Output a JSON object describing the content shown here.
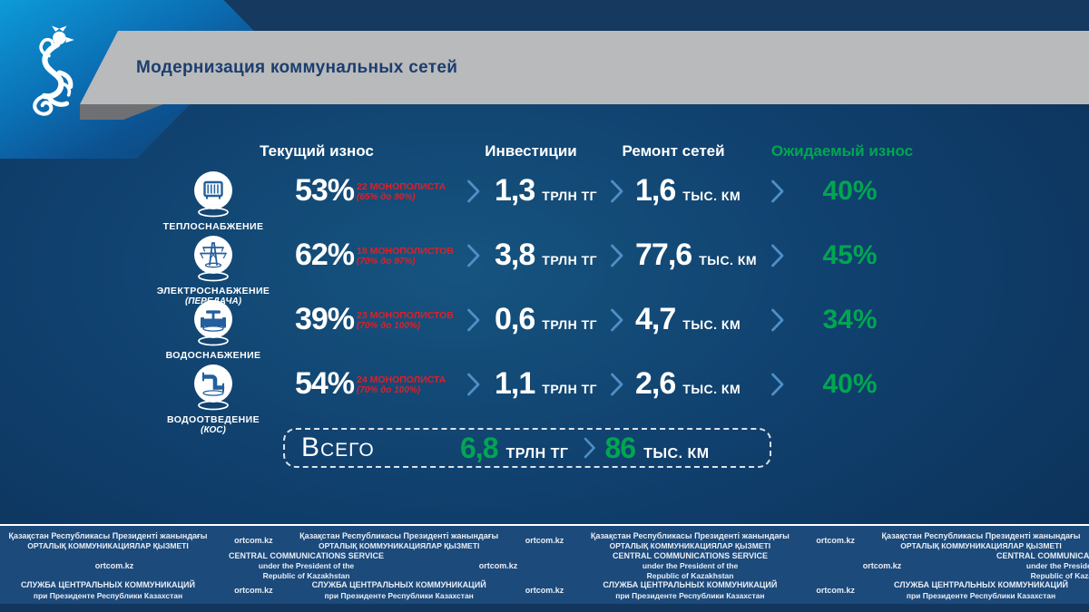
{
  "slide": {
    "title": "Модернизация коммунальных сетей",
    "logo": "kazakhstan-snow-leopard-emblem"
  },
  "columns": {
    "current_wear": "Текущий износ",
    "investment": "Инвестиции",
    "repair": "Ремонт сетей",
    "expected_wear": "Ожидаемый износ"
  },
  "rows": [
    {
      "sector": "ТЕПЛОСНАБЖЕНИЕ",
      "sector_note": "",
      "icon": "radiator-icon",
      "wear": "53%",
      "monopolists": "22 МОНОПОЛИСТА",
      "range": "(65% до 90%)",
      "invest_value": "1,3",
      "invest_unit": "ТРЛН ТГ",
      "repair_value": "1,6",
      "repair_unit": "ТЫС.  КМ",
      "expected": "40%"
    },
    {
      "sector": "ЭЛЕКТРОСНАБЖЕНИЕ",
      "sector_note": "(ПЕРЕДАЧА)",
      "icon": "power-tower-icon",
      "wear": "62%",
      "monopolists": "18 МОНОПОЛИСТОВ",
      "range": "(70% до 97%)",
      "invest_value": "3,8",
      "invest_unit": "ТРЛН ТГ",
      "repair_value": "77,6",
      "repair_unit": "ТЫС. КМ",
      "expected": "45%"
    },
    {
      "sector": "ВОДОСНАБЖЕНИЕ",
      "sector_note": "",
      "icon": "water-valve-icon",
      "wear": "39%",
      "monopolists": "23 МОНОПОЛИСТОВ",
      "range": "(70% до 100%)",
      "invest_value": "0,6",
      "invest_unit": "ТРЛН ТГ",
      "repair_value": "4,7",
      "repair_unit": "ТЫС. КМ",
      "expected": "34%"
    },
    {
      "sector": "ВОДООТВЕДЕНИЕ",
      "sector_note": "(КОС)",
      "icon": "sewer-pipe-icon",
      "wear": "54%",
      "monopolists": "24 МОНОПОЛИСТА",
      "range": "(70% до 100%)",
      "invest_value": "1,1",
      "invest_unit": "ТРЛН ТГ",
      "repair_value": "2,6",
      "repair_unit": "ТЫС. КМ",
      "expected": "40%"
    }
  ],
  "total": {
    "label": "Всего",
    "invest_value": "6,8",
    "invest_unit": "ТРЛН ТГ",
    "repair_value": "86",
    "repair_unit": "ТЫС. КМ"
  },
  "footer": {
    "url": "ortcom.kz",
    "kazakh": [
      "Қазақстан Республикасы Президенті жанындағы",
      "ОРТАЛЫҚ КОММУНИКАЦИЯЛАР ҚЫЗМЕТІ"
    ],
    "english": [
      "CENTRAL COMMUNICATIONS SERVICE",
      "under the President of the",
      "Republic of Kazakhstan"
    ],
    "russian": [
      "СЛУЖБА ЦЕНТРАЛЬНЫХ КОММУНИКАЦИЙ",
      "при Президенте Республики Казахстан"
    ]
  },
  "colors": {
    "green": "#00A651",
    "red": "#E01F26",
    "chevron": "#4E8FC7",
    "banner_gray": "#B9BABC",
    "title_navy": "#1C3E6E"
  }
}
